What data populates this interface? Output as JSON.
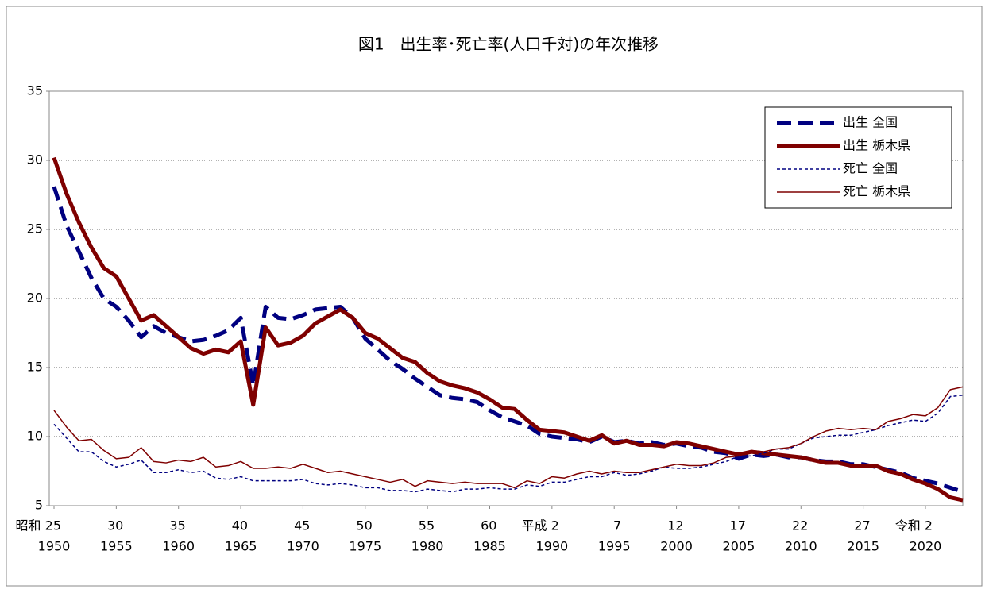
{
  "chart_data": {
    "type": "line",
    "title": "図1　出生率･死亡率(人口千対)の年次推移",
    "x": [
      1950,
      1951,
      1952,
      1953,
      1954,
      1955,
      1956,
      1957,
      1958,
      1959,
      1960,
      1961,
      1962,
      1963,
      1964,
      1965,
      1966,
      1967,
      1968,
      1969,
      1970,
      1971,
      1972,
      1973,
      1974,
      1975,
      1976,
      1977,
      1978,
      1979,
      1980,
      1981,
      1982,
      1983,
      1984,
      1985,
      1986,
      1987,
      1988,
      1989,
      1990,
      1991,
      1992,
      1993,
      1994,
      1995,
      1996,
      1997,
      1998,
      1999,
      2000,
      2001,
      2002,
      2003,
      2004,
      2005,
      2006,
      2007,
      2008,
      2009,
      2010,
      2011,
      2012,
      2013,
      2014,
      2015,
      2016,
      2017,
      2018,
      2019,
      2020,
      2021,
      2022,
      2023
    ],
    "xlim": [
      1950,
      2023
    ],
    "xticks": [
      1950,
      1955,
      1960,
      1965,
      1970,
      1975,
      1980,
      1985,
      1990,
      1995,
      2000,
      2005,
      2010,
      2015,
      2020
    ],
    "era_labels": [
      "昭和 25",
      "30",
      "35",
      "40",
      "45",
      "50",
      "55",
      "60",
      "平成 2",
      "7",
      "12",
      "17",
      "22",
      "27",
      "令和 2"
    ],
    "ylim": [
      5,
      35
    ],
    "yticks": [
      5,
      10,
      15,
      20,
      25,
      30,
      35
    ],
    "grid": true,
    "legend": "upper right",
    "series": [
      {
        "name": "出生 全国",
        "color": "#000080",
        "style": "dashed",
        "width": 5,
        "values": [
          28.1,
          25.3,
          23.4,
          21.5,
          20.0,
          19.4,
          18.4,
          17.2,
          18.0,
          17.5,
          17.2,
          16.9,
          17.0,
          17.3,
          17.7,
          18.6,
          13.7,
          19.4,
          18.6,
          18.5,
          18.8,
          19.2,
          19.3,
          19.4,
          18.6,
          17.1,
          16.3,
          15.5,
          14.9,
          14.2,
          13.6,
          13.0,
          12.8,
          12.7,
          12.5,
          11.9,
          11.4,
          11.1,
          10.8,
          10.2,
          10.0,
          9.9,
          9.8,
          9.6,
          10.0,
          9.6,
          9.7,
          9.5,
          9.6,
          9.4,
          9.5,
          9.3,
          9.2,
          8.9,
          8.8,
          8.4,
          8.7,
          8.6,
          8.7,
          8.5,
          8.5,
          8.3,
          8.2,
          8.2,
          8.0,
          8.0,
          7.8,
          7.6,
          7.4,
          7.0,
          6.8,
          6.6,
          6.3,
          6.0
        ]
      },
      {
        "name": "出生 栃木県",
        "color": "#7f0000",
        "style": "solid",
        "width": 5,
        "values": [
          30.2,
          27.6,
          25.5,
          23.7,
          22.2,
          21.6,
          20.0,
          18.4,
          18.8,
          18.0,
          17.2,
          16.4,
          16.0,
          16.3,
          16.1,
          16.9,
          12.3,
          17.9,
          16.6,
          16.8,
          17.3,
          18.2,
          18.7,
          19.2,
          18.6,
          17.5,
          17.1,
          16.4,
          15.7,
          15.4,
          14.6,
          14.0,
          13.7,
          13.5,
          13.2,
          12.7,
          12.1,
          12.0,
          11.2,
          10.5,
          10.4,
          10.3,
          10.0,
          9.7,
          10.1,
          9.5,
          9.7,
          9.4,
          9.4,
          9.3,
          9.6,
          9.5,
          9.3,
          9.1,
          8.9,
          8.7,
          8.9,
          8.8,
          8.7,
          8.6,
          8.5,
          8.3,
          8.1,
          8.1,
          7.9,
          7.9,
          7.9,
          7.5,
          7.3,
          6.9,
          6.6,
          6.2,
          5.6,
          5.4
        ]
      },
      {
        "name": "死亡 全国",
        "color": "#000080",
        "style": "dashed",
        "width": 1.5,
        "values": [
          10.9,
          9.9,
          8.9,
          8.9,
          8.2,
          7.8,
          8.0,
          8.3,
          7.4,
          7.4,
          7.6,
          7.4,
          7.5,
          7.0,
          6.9,
          7.1,
          6.8,
          6.8,
          6.8,
          6.8,
          6.9,
          6.6,
          6.5,
          6.6,
          6.5,
          6.3,
          6.3,
          6.1,
          6.1,
          6.0,
          6.2,
          6.1,
          6.0,
          6.2,
          6.2,
          6.3,
          6.2,
          6.2,
          6.5,
          6.4,
          6.7,
          6.7,
          6.9,
          7.1,
          7.1,
          7.4,
          7.2,
          7.3,
          7.5,
          7.8,
          7.7,
          7.7,
          7.8,
          8.0,
          8.2,
          8.6,
          8.6,
          8.8,
          9.1,
          9.1,
          9.5,
          9.9,
          10.0,
          10.1,
          10.1,
          10.3,
          10.5,
          10.8,
          11.0,
          11.2,
          11.1,
          11.7,
          12.9,
          13.0
        ]
      },
      {
        "name": "死亡 栃木県",
        "color": "#7f0000",
        "style": "solid",
        "width": 1.5,
        "values": [
          11.9,
          10.7,
          9.7,
          9.8,
          9.0,
          8.4,
          8.5,
          9.2,
          8.2,
          8.1,
          8.3,
          8.2,
          8.5,
          7.8,
          7.9,
          8.2,
          7.7,
          7.7,
          7.8,
          7.7,
          8.0,
          7.7,
          7.4,
          7.5,
          7.3,
          7.1,
          6.9,
          6.7,
          6.9,
          6.4,
          6.8,
          6.7,
          6.6,
          6.7,
          6.6,
          6.6,
          6.6,
          6.3,
          6.8,
          6.6,
          7.1,
          7.0,
          7.3,
          7.5,
          7.3,
          7.5,
          7.4,
          7.4,
          7.6,
          7.8,
          8.0,
          7.9,
          7.9,
          8.1,
          8.5,
          8.6,
          9.0,
          8.9,
          9.1,
          9.2,
          9.5,
          10.0,
          10.4,
          10.6,
          10.5,
          10.6,
          10.5,
          11.1,
          11.3,
          11.6,
          11.5,
          12.1,
          13.4,
          13.6
        ]
      }
    ]
  }
}
